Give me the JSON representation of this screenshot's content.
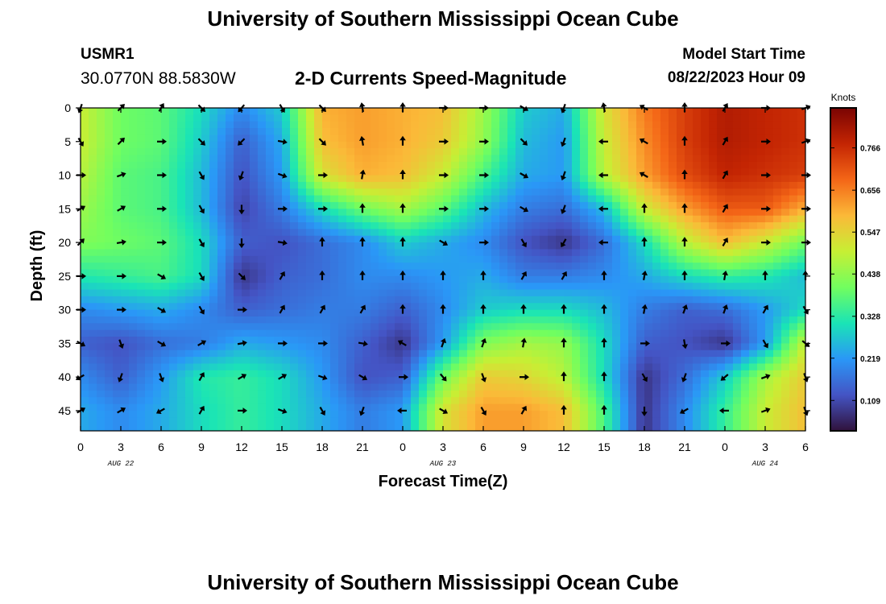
{
  "header": {
    "title": "University of Southern Mississippi Ocean Cube",
    "station": "USMR1",
    "coordinates": "30.0770N  88.5830W",
    "subtitle": "2-D Currents Speed-Magnitude",
    "model_start_label": "Model Start Time",
    "model_start_value": "08/22/2023 Hour 09"
  },
  "footer": {
    "title": "University of Southern Mississippi Ocean Cube"
  },
  "chart_data": {
    "type": "heatmap",
    "xlabel": "Forecast Time(Z)",
    "ylabel": "Depth (ft)",
    "x_start_offset_hours": 0,
    "x_range_hours": [
      0,
      54
    ],
    "x_tick_labels": [
      "0",
      "3",
      "6",
      "9",
      "12",
      "15",
      "18",
      "21",
      "0",
      "3",
      "6",
      "9",
      "12",
      "15",
      "18",
      "21",
      "0",
      "3",
      "6"
    ],
    "date_labels": [
      {
        "text": "AUG 22",
        "hour": 12
      },
      {
        "text": "AUG 23",
        "hour": 36
      },
      {
        "text": "AUG 24",
        "hour": 60
      }
    ],
    "y_ticks": [
      0,
      5,
      10,
      15,
      20,
      25,
      30,
      35,
      40,
      45
    ],
    "y_range": [
      0,
      48
    ],
    "colorbar": {
      "title": "Knots",
      "ticks": [
        0.109,
        0.219,
        0.328,
        0.438,
        0.547,
        0.656,
        0.766
      ],
      "range": [
        0.03,
        0.87
      ],
      "colors": [
        "#30123b",
        "#4454c4",
        "#2a97f7",
        "#1ae4b6",
        "#71fe5f",
        "#c7ef34",
        "#fbb938",
        "#f46617",
        "#c42503",
        "#7a0403"
      ]
    },
    "grid_x_hours": [
      0,
      3,
      6,
      9,
      12,
      15,
      18,
      21,
      24,
      27,
      30,
      33,
      36,
      39,
      42,
      45,
      48,
      51,
      54
    ],
    "grid_depths_ft": [
      0,
      5,
      10,
      15,
      20,
      25,
      30,
      35,
      40,
      45
    ],
    "speed_knots": [
      [
        0.5,
        0.4,
        0.38,
        0.3,
        0.2,
        0.28,
        0.6,
        0.62,
        0.6,
        0.58,
        0.45,
        0.28,
        0.24,
        0.52,
        0.66,
        0.74,
        0.8,
        0.78,
        0.76
      ],
      [
        0.5,
        0.4,
        0.38,
        0.28,
        0.14,
        0.24,
        0.58,
        0.62,
        0.6,
        0.56,
        0.44,
        0.26,
        0.22,
        0.5,
        0.64,
        0.74,
        0.8,
        0.78,
        0.76
      ],
      [
        0.48,
        0.38,
        0.36,
        0.26,
        0.12,
        0.22,
        0.52,
        0.6,
        0.58,
        0.5,
        0.36,
        0.24,
        0.22,
        0.48,
        0.62,
        0.72,
        0.78,
        0.76,
        0.74
      ],
      [
        0.45,
        0.38,
        0.36,
        0.26,
        0.1,
        0.18,
        0.3,
        0.4,
        0.46,
        0.38,
        0.26,
        0.18,
        0.16,
        0.26,
        0.5,
        0.62,
        0.7,
        0.7,
        0.6
      ],
      [
        0.42,
        0.4,
        0.38,
        0.3,
        0.14,
        0.12,
        0.16,
        0.2,
        0.28,
        0.24,
        0.2,
        0.12,
        0.08,
        0.16,
        0.3,
        0.48,
        0.58,
        0.5,
        0.4
      ],
      [
        0.32,
        0.34,
        0.36,
        0.3,
        0.08,
        0.14,
        0.16,
        0.2,
        0.2,
        0.22,
        0.24,
        0.18,
        0.18,
        0.2,
        0.24,
        0.3,
        0.34,
        0.32,
        0.26
      ],
      [
        0.2,
        0.22,
        0.24,
        0.2,
        0.14,
        0.16,
        0.18,
        0.18,
        0.14,
        0.2,
        0.28,
        0.3,
        0.3,
        0.26,
        0.18,
        0.14,
        0.16,
        0.22,
        0.3
      ],
      [
        0.14,
        0.12,
        0.16,
        0.18,
        0.24,
        0.22,
        0.2,
        0.14,
        0.08,
        0.22,
        0.42,
        0.46,
        0.44,
        0.3,
        0.14,
        0.12,
        0.08,
        0.22,
        0.5
      ],
      [
        0.2,
        0.14,
        0.22,
        0.32,
        0.34,
        0.3,
        0.22,
        0.12,
        0.14,
        0.4,
        0.56,
        0.54,
        0.48,
        0.3,
        0.08,
        0.16,
        0.28,
        0.46,
        0.56
      ],
      [
        0.24,
        0.2,
        0.24,
        0.3,
        0.34,
        0.3,
        0.24,
        0.18,
        0.22,
        0.52,
        0.62,
        0.62,
        0.58,
        0.36,
        0.08,
        0.2,
        0.34,
        0.5,
        0.58
      ]
    ],
    "direction_deg": [
      [
        200,
        45,
        30,
        135,
        220,
        150,
        135,
        350,
        0,
        90,
        90,
        120,
        200,
        350,
        300,
        0,
        30,
        90,
        70
      ],
      [
        150,
        45,
        90,
        135,
        225,
        100,
        135,
        350,
        0,
        90,
        90,
        135,
        200,
        270,
        300,
        0,
        30,
        90,
        70
      ],
      [
        90,
        70,
        90,
        150,
        200,
        110,
        90,
        10,
        0,
        90,
        90,
        120,
        200,
        270,
        300,
        0,
        30,
        90,
        90
      ],
      [
        60,
        60,
        90,
        150,
        180,
        90,
        90,
        0,
        0,
        90,
        90,
        120,
        200,
        270,
        0,
        0,
        30,
        90,
        90
      ],
      [
        45,
        80,
        90,
        150,
        180,
        100,
        0,
        0,
        0,
        120,
        90,
        150,
        210,
        270,
        0,
        0,
        30,
        90,
        90
      ],
      [
        90,
        90,
        120,
        150,
        135,
        30,
        0,
        0,
        0,
        0,
        0,
        30,
        30,
        0,
        10,
        0,
        10,
        0,
        0
      ],
      [
        90,
        90,
        120,
        150,
        90,
        30,
        30,
        30,
        0,
        0,
        0,
        0,
        0,
        0,
        10,
        20,
        20,
        30,
        150
      ],
      [
        120,
        160,
        120,
        60,
        80,
        90,
        90,
        100,
        300,
        20,
        20,
        10,
        0,
        0,
        90,
        170,
        90,
        150,
        130
      ],
      [
        240,
        200,
        160,
        30,
        60,
        60,
        110,
        120,
        90,
        140,
        160,
        90,
        0,
        0,
        150,
        200,
        230,
        70,
        160
      ],
      [
        60,
        60,
        240,
        30,
        90,
        110,
        150,
        200,
        270,
        120,
        150,
        30,
        0,
        0,
        180,
        240,
        270,
        70,
        160
      ]
    ]
  }
}
